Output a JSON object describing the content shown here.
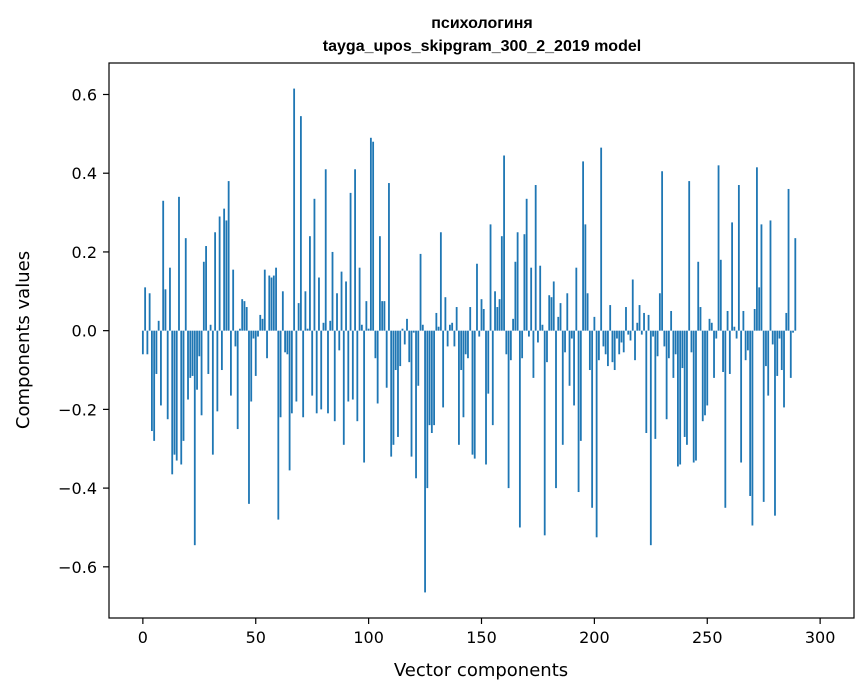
{
  "chart_data": {
    "type": "bar",
    "title": "психологиня",
    "subtitle": "tayga_upos_skipgram_300_2_2019 model",
    "xlabel": "Vector components",
    "ylabel": "Components values",
    "xlim": [
      -15,
      315
    ],
    "ylim": [
      -0.73,
      0.68
    ],
    "xticks": [
      0,
      50,
      100,
      150,
      200,
      250,
      300
    ],
    "xtick_labels": [
      "0",
      "50",
      "100",
      "150",
      "200",
      "250",
      "300"
    ],
    "yticks": [
      -0.6,
      -0.4,
      -0.2,
      0.0,
      0.2,
      0.4,
      0.6
    ],
    "ytick_labels": [
      "−0.6",
      "−0.4",
      "−0.2",
      "0.0",
      "0.2",
      "0.4",
      "0.6"
    ],
    "bar_color": "#1f77b4",
    "grid": false,
    "values": [
      -0.06,
      0.11,
      -0.06,
      0.095,
      -0.255,
      -0.28,
      -0.11,
      0.025,
      -0.19,
      0.33,
      0.105,
      -0.225,
      0.16,
      -0.365,
      -0.315,
      -0.33,
      0.34,
      -0.34,
      -0.28,
      0.235,
      -0.175,
      -0.12,
      -0.115,
      -0.545,
      -0.15,
      -0.065,
      -0.215,
      0.175,
      0.215,
      -0.11,
      0.015,
      -0.315,
      0.25,
      -0.205,
      0.29,
      -0.1,
      0.31,
      0.28,
      0.38,
      -0.165,
      0.155,
      -0.04,
      -0.25,
      0.005,
      0.08,
      0.075,
      0.06,
      -0.44,
      -0.18,
      -0.02,
      -0.115,
      -0.015,
      0.04,
      0.03,
      0.155,
      -0.07,
      0.14,
      0.135,
      0.14,
      0.16,
      -0.48,
      -0.22,
      0.1,
      -0.055,
      -0.06,
      -0.355,
      -0.21,
      0.615,
      -0.18,
      0.07,
      0.545,
      -0.22,
      0.1,
      0.005,
      0.24,
      -0.165,
      0.335,
      -0.21,
      0.135,
      -0.2,
      0.02,
      0.41,
      -0.21,
      0.025,
      0.2,
      -0.23,
      0.095,
      -0.05,
      0.15,
      -0.29,
      0.125,
      -0.18,
      0.35,
      -0.175,
      0.41,
      -0.23,
      0.16,
      0.015,
      -0.335,
      0.075,
      0.005,
      0.49,
      0.48,
      -0.07,
      -0.185,
      0.24,
      0.075,
      0.075,
      -0.145,
      0.375,
      -0.32,
      -0.29,
      -0.1,
      -0.27,
      -0.09,
      0.005,
      -0.035,
      0.03,
      -0.08,
      -0.32,
      -0.005,
      -0.375,
      -0.14,
      0.195,
      0.015,
      -0.665,
      -0.4,
      -0.24,
      -0.26,
      -0.24,
      0.045,
      0.01,
      0.25,
      -0.195,
      0.085,
      -0.04,
      0.015,
      0.02,
      -0.04,
      0.06,
      -0.29,
      -0.1,
      -0.22,
      -0.06,
      -0.07,
      0.06,
      -0.315,
      -0.325,
      0.17,
      -0.015,
      0.08,
      0.055,
      -0.34,
      -0.16,
      0.27,
      -0.24,
      0.1,
      0.06,
      0.08,
      0.24,
      0.445,
      -0.06,
      -0.4,
      -0.075,
      0.03,
      0.175,
      0.25,
      -0.5,
      -0.07,
      0.245,
      0.335,
      -0.015,
      0.16,
      -0.12,
      0.37,
      -0.03,
      0.165,
      0.015,
      -0.52,
      -0.08,
      0.09,
      0.085,
      0.125,
      -0.4,
      0.035,
      0.07,
      -0.29,
      -0.055,
      0.095,
      -0.14,
      -0.02,
      -0.19,
      0.16,
      -0.41,
      -0.28,
      0.43,
      0.27,
      0.095,
      -0.1,
      -0.45,
      0.035,
      -0.525,
      -0.075,
      0.465,
      -0.04,
      -0.06,
      -0.09,
      0.065,
      -0.08,
      -0.1,
      -0.02,
      -0.06,
      -0.03,
      -0.055,
      0.06,
      -0.01,
      -0.025,
      0.13,
      -0.075,
      0.02,
      0.065,
      -0.01,
      0.045,
      -0.26,
      0.04,
      -0.545,
      -0.015,
      -0.275,
      -0.065,
      0.095,
      0.405,
      -0.04,
      -0.225,
      -0.07,
      0.05,
      -0.12,
      -0.06,
      -0.345,
      -0.34,
      -0.095,
      -0.27,
      -0.29,
      0.38,
      -0.055,
      -0.335,
      -0.33,
      0.175,
      0.06,
      -0.23,
      -0.215,
      -0.19,
      0.03,
      0.02,
      -0.12,
      -0.02,
      0.42,
      0.18,
      -0.105,
      -0.45,
      0.05,
      -0.11,
      0.275,
      0.01,
      -0.02,
      0.37,
      -0.335,
      0.05,
      -0.075,
      -0.05,
      -0.42,
      -0.495,
      0.055,
      0.415,
      0.11,
      0.27,
      -0.435,
      -0.09,
      -0.165,
      0.28,
      -0.035,
      -0.47,
      -0.115,
      -0.02,
      -0.1,
      -0.195,
      0.045,
      0.36,
      -0.12,
      -0.005,
      0.235
    ]
  }
}
